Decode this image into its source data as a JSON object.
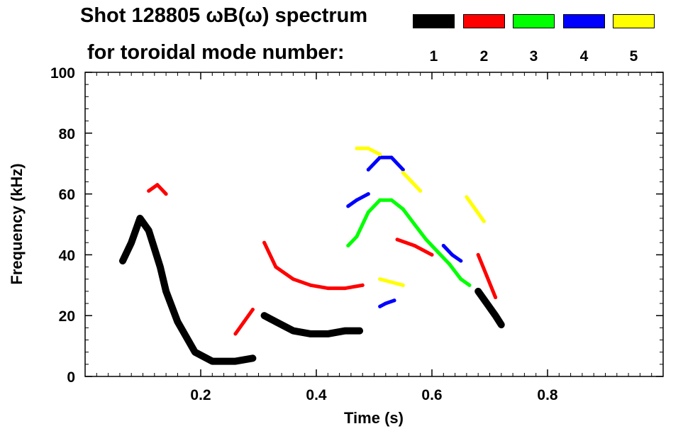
{
  "header": {
    "title_line_1": "Shot 128805 ωB(ω) spectrum",
    "title_line_2": "for toroidal mode number:"
  },
  "legend": {
    "entries": [
      {
        "label": "1",
        "color": "#000000"
      },
      {
        "label": "2",
        "color": "#ff0000"
      },
      {
        "label": "3",
        "color": "#00ff00"
      },
      {
        "label": "4",
        "color": "#0000ff"
      },
      {
        "label": "5",
        "color": "#ffff00"
      }
    ]
  },
  "chart_data": {
    "type": "scatter",
    "title": "Shot 128805 ωB(ω) spectrum for toroidal mode number",
    "xlabel": "Time (s)",
    "ylabel": "Frequency (kHz)",
    "xlim": [
      0,
      1.0
    ],
    "ylim": [
      0,
      100
    ],
    "x_ticks": [
      0.2,
      0.4,
      0.6,
      0.8
    ],
    "x_tick_labels": [
      "0.2",
      "0.4",
      "0.6",
      "0.8"
    ],
    "y_ticks": [
      0,
      20,
      40,
      60,
      80,
      100
    ],
    "y_tick_labels": [
      "0",
      "20",
      "40",
      "60",
      "80",
      "100"
    ],
    "series": [
      {
        "name": "1",
        "color": "#000000",
        "curves": [
          [
            [
              0.065,
              38
            ],
            [
              0.08,
              44
            ],
            [
              0.095,
              52
            ],
            [
              0.11,
              48
            ],
            [
              0.12,
              42
            ],
            [
              0.13,
              36
            ],
            [
              0.14,
              28
            ],
            [
              0.16,
              18
            ],
            [
              0.19,
              8
            ],
            [
              0.22,
              5
            ],
            [
              0.26,
              5
            ],
            [
              0.29,
              6
            ]
          ],
          [
            [
              0.31,
              20
            ],
            [
              0.33,
              18
            ],
            [
              0.36,
              15
            ],
            [
              0.39,
              14
            ],
            [
              0.42,
              14
            ],
            [
              0.45,
              15
            ],
            [
              0.475,
              15
            ]
          ],
          [
            [
              0.68,
              28
            ],
            [
              0.695,
              24
            ],
            [
              0.71,
              20
            ],
            [
              0.72,
              17
            ]
          ]
        ]
      },
      {
        "name": "2",
        "color": "#ff0000",
        "curves": [
          [
            [
              0.11,
              61
            ],
            [
              0.125,
              63
            ],
            [
              0.14,
              60
            ]
          ],
          [
            [
              0.31,
              44
            ],
            [
              0.33,
              36
            ],
            [
              0.36,
              32
            ],
            [
              0.39,
              30
            ],
            [
              0.42,
              29
            ],
            [
              0.45,
              29
            ],
            [
              0.48,
              30
            ]
          ],
          [
            [
              0.26,
              14
            ],
            [
              0.275,
              18
            ],
            [
              0.29,
              22
            ]
          ],
          [
            [
              0.54,
              45
            ],
            [
              0.57,
              43
            ],
            [
              0.6,
              40
            ]
          ],
          [
            [
              0.68,
              40
            ],
            [
              0.695,
              33
            ],
            [
              0.71,
              26
            ]
          ]
        ]
      },
      {
        "name": "3",
        "color": "#00ff00",
        "curves": [
          [
            [
              0.455,
              43
            ],
            [
              0.47,
              46
            ],
            [
              0.49,
              54
            ],
            [
              0.51,
              58
            ],
            [
              0.53,
              58
            ],
            [
              0.55,
              55
            ],
            [
              0.57,
              50
            ],
            [
              0.59,
              45
            ],
            [
              0.61,
              41
            ],
            [
              0.63,
              37
            ],
            [
              0.65,
              32
            ],
            [
              0.665,
              30
            ]
          ]
        ]
      },
      {
        "name": "4",
        "color": "#0000ff",
        "curves": [
          [
            [
              0.49,
              68
            ],
            [
              0.51,
              72
            ],
            [
              0.53,
              72
            ],
            [
              0.55,
              68
            ]
          ],
          [
            [
              0.455,
              56
            ],
            [
              0.47,
              58
            ],
            [
              0.49,
              60
            ]
          ],
          [
            [
              0.51,
              23
            ],
            [
              0.52,
              24
            ],
            [
              0.535,
              25
            ]
          ],
          [
            [
              0.62,
              43
            ],
            [
              0.635,
              40
            ],
            [
              0.65,
              38
            ]
          ]
        ]
      },
      {
        "name": "5",
        "color": "#ffff00",
        "curves": [
          [
            [
              0.47,
              75
            ],
            [
              0.49,
              75
            ],
            [
              0.51,
              73
            ]
          ],
          [
            [
              0.55,
              67
            ],
            [
              0.565,
              64
            ],
            [
              0.58,
              61
            ]
          ],
          [
            [
              0.66,
              59
            ],
            [
              0.675,
              55
            ],
            [
              0.69,
              51
            ]
          ],
          [
            [
              0.51,
              32
            ],
            [
              0.53,
              31
            ],
            [
              0.55,
              30
            ]
          ]
        ]
      }
    ]
  }
}
